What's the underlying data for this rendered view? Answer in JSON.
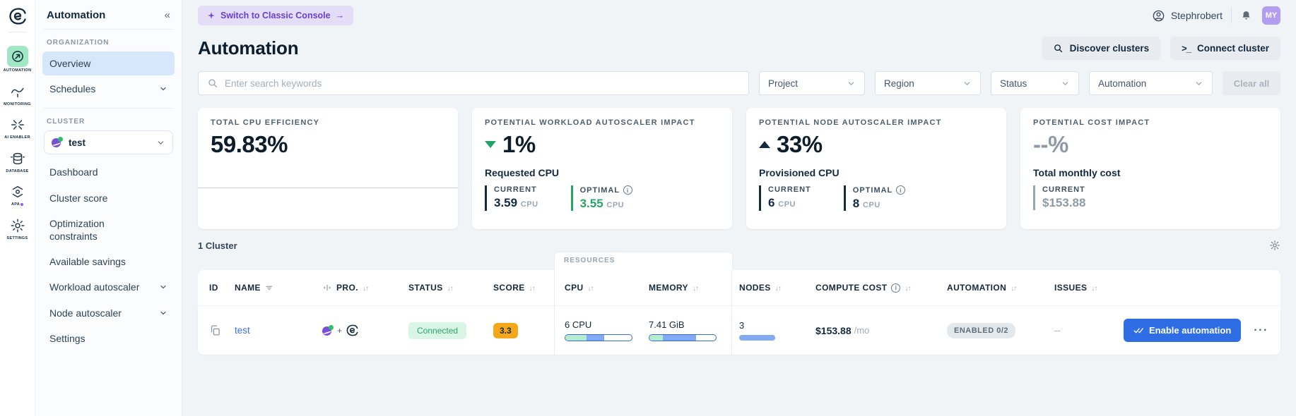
{
  "icon_rail": {
    "items": [
      {
        "label": "AUTOMATION",
        "icon": "automation-icon",
        "active": true
      },
      {
        "label": "MONITORING",
        "icon": "monitoring-icon",
        "active": false
      },
      {
        "label": "AI ENABLER",
        "icon": "ai-enabler-icon",
        "active": false
      },
      {
        "label": "DATABASE",
        "icon": "database-icon",
        "active": false
      },
      {
        "label": "APA",
        "icon": "apa-icon",
        "active": false,
        "badge_dot": true
      },
      {
        "label": "SETTINGS",
        "icon": "settings-icon",
        "active": false
      }
    ]
  },
  "sidebar": {
    "title": "Automation",
    "collapse_icon": "«",
    "org_section": "ORGANIZATION",
    "org_items": [
      {
        "label": "Overview",
        "selected": true
      },
      {
        "label": "Schedules",
        "chevron": true
      }
    ],
    "cluster_section": "CLUSTER",
    "cluster_selector": {
      "value": "test"
    },
    "cluster_items": [
      {
        "label": "Dashboard"
      },
      {
        "label": "Cluster score"
      },
      {
        "label": "Optimization constraints"
      },
      {
        "label": "Available savings"
      },
      {
        "label": "Workload autoscaler",
        "chevron": true
      },
      {
        "label": "Node autoscaler",
        "chevron": true
      },
      {
        "label": "Settings"
      }
    ]
  },
  "topbar": {
    "switch_button": "Switch to Classic Console",
    "switch_arrow": "→",
    "user_name": "Stephrobert",
    "avatar_initials": "MY"
  },
  "header": {
    "title": "Automation",
    "buttons": [
      {
        "label": "Discover clusters",
        "icon": "search-icon"
      },
      {
        "label": "Connect cluster",
        "icon": "terminal-icon"
      }
    ]
  },
  "filters": {
    "search_placeholder": "Enter search keywords",
    "dropdowns": [
      {
        "label": "Project"
      },
      {
        "label": "Region"
      },
      {
        "label": "Status"
      },
      {
        "label": "Automation"
      }
    ],
    "clear_label": "Clear all"
  },
  "cards": [
    {
      "label": "TOTAL CPU EFFICIENCY",
      "value": "59.83%"
    },
    {
      "label": "POTENTIAL WORKLOAD AUTOSCALER IMPACT",
      "trend": "down",
      "trend_color": "#1ea565",
      "value": "1%",
      "metric": "Requested CPU",
      "stats": [
        {
          "label": "CURRENT",
          "value": "3.59",
          "unit": "CPU"
        },
        {
          "label": "OPTIMAL",
          "value": "3.55",
          "unit": "CPU",
          "info": true,
          "accent": "#27a468"
        }
      ]
    },
    {
      "label": "POTENTIAL NODE AUTOSCALER IMPACT",
      "trend": "up",
      "trend_color": "#13293c",
      "value": "33%",
      "metric": "Provisioned CPU",
      "stats": [
        {
          "label": "CURRENT",
          "value": "6",
          "unit": "CPU"
        },
        {
          "label": "OPTIMAL",
          "value": "8",
          "unit": "CPU",
          "info": true
        }
      ]
    },
    {
      "label": "POTENTIAL COST IMPACT",
      "value": "--%",
      "metric": "Total monthly cost",
      "stats": [
        {
          "label": "CURRENT",
          "value": "$153.88"
        }
      ]
    }
  ],
  "cluster_list": {
    "count_label": "1 Cluster",
    "resources_group_label": "RESOURCES",
    "columns": [
      {
        "label": "ID"
      },
      {
        "label": "NAME",
        "filter": true
      },
      {
        "label": "PRO.",
        "sortable": true,
        "resizable": true
      },
      {
        "label": "STATUS",
        "sortable": true
      },
      {
        "label": "SCORE",
        "sortable": true
      },
      {
        "label": "CPU",
        "sortable": true,
        "group": "RESOURCES"
      },
      {
        "label": "MEMORY",
        "sortable": true,
        "group": "RESOURCES"
      },
      {
        "label": "NODES",
        "sortable": true
      },
      {
        "label": "COMPUTE COST",
        "sortable": true,
        "info": true
      },
      {
        "label": "AUTOMATION",
        "sortable": true
      },
      {
        "label": "ISSUES",
        "sortable": true
      }
    ],
    "row": {
      "name": "test",
      "provider_join": "+",
      "status": "Connected",
      "score": "3.3",
      "cpu": {
        "label": "6 CPU",
        "used_pct": 32,
        "requested_pct": 27
      },
      "memory": {
        "label": "7.41 GiB",
        "used_pct": 20,
        "requested_pct": 50
      },
      "nodes": {
        "label": "3",
        "pct": 52
      },
      "compute_cost": {
        "amount": "$153.88",
        "suffix": "/mo"
      },
      "automation_badge": "ENABLED 0/2",
      "issues": "--",
      "action_label": "Enable automation"
    }
  }
}
